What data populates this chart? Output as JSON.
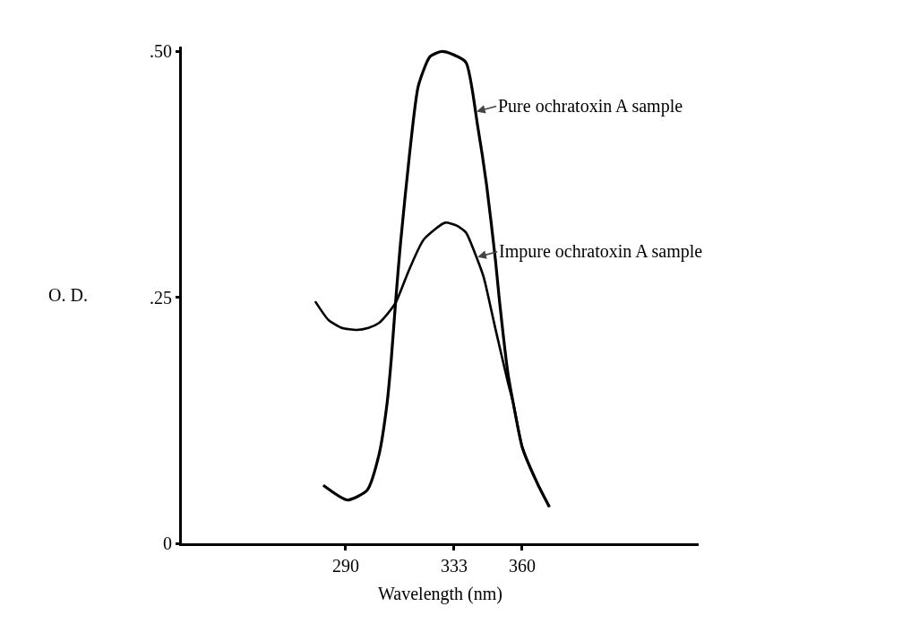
{
  "chart_data": {
    "type": "line",
    "xlabel": "Wavelength (nm)",
    "ylabel": "O. D.",
    "xlim": [
      225,
      430
    ],
    "xticks": [
      290,
      333,
      360
    ],
    "ylim": [
      0,
      0.505
    ],
    "yticks": [
      {
        "value": 0,
        "label": "0"
      },
      {
        "value": 0.25,
        "label": ".25"
      },
      {
        "value": 0.5,
        "label": ".50"
      }
    ],
    "grid": false,
    "marker": "none",
    "line_style": "solid",
    "series": [
      {
        "color": "#000000",
        "x": [
          281.1,
          290.7,
          298.5,
          303.2,
          306.4,
          308.1,
          309.9,
          311.7,
          315.3,
          318.8,
          323.5,
          328,
          332.5,
          337.7,
          342.3,
          345.9,
          349.4,
          350.9,
          354.4,
          356.5,
          360.1,
          366.2,
          370.8
        ],
        "values": [
          0.059,
          0.044,
          0.054,
          0.09,
          0.142,
          0.188,
          0.249,
          0.304,
          0.395,
          0.465,
          0.495,
          0.5,
          0.497,
          0.489,
          0.425,
          0.364,
          0.288,
          0.249,
          0.172,
          0.142,
          0.097,
          0.06,
          0.037
        ]
      },
      {
        "color": "#000000",
        "x": [
          277.9,
          283.2,
          288.5,
          294.3,
          299,
          303.2,
          306.5,
          309.9,
          315.3,
          321,
          329.5,
          334,
          337.7,
          342.3,
          344.8,
          349.4,
          354.4,
          356.5,
          360.1,
          366.2,
          370.8
        ],
        "values": [
          0.246,
          0.227,
          0.219,
          0.217,
          0.219,
          0.224,
          0.233,
          0.245,
          0.279,
          0.309,
          0.326,
          0.323,
          0.316,
          0.288,
          0.27,
          0.218,
          0.163,
          0.142,
          0.097,
          0.06,
          0.037
        ]
      }
    ],
    "annotations": [
      {
        "text": "Pure ochratoxin A sample",
        "x": 341.9,
        "y": 0.439
      },
      {
        "text": "Impure ochratoxin A sample",
        "x": 342.3,
        "y": 0.291
      }
    ]
  }
}
